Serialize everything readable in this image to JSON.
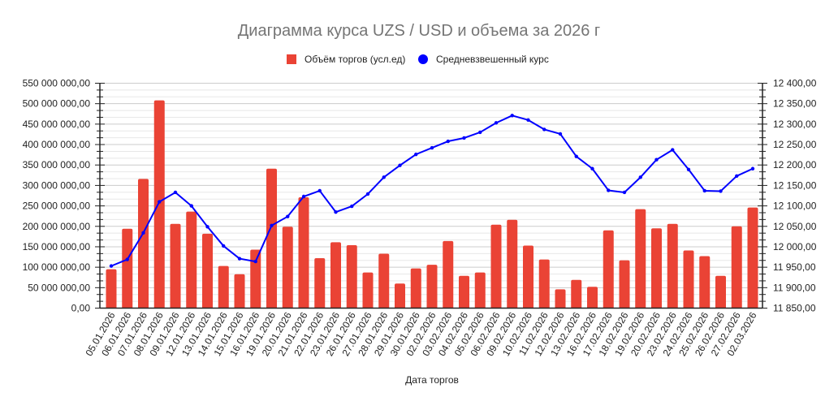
{
  "chart_data": {
    "type": "bar",
    "combo": "bar + line (dual axis)",
    "title": "Диаграмма курса UZS / USD и объема за 2026 г",
    "xlabel": "Дата торгов",
    "ylabel": "",
    "ylabel_right": "",
    "legend_position": "top",
    "grid": true,
    "categories": [
      "05.01.2026",
      "06.01.2026",
      "07.01.2026",
      "08.01.2026",
      "09.01.2026",
      "12.01.2026",
      "13.01.2026",
      "14.01.2026",
      "15.01.2026",
      "16.01.2026",
      "19.01.2026",
      "20.01.2026",
      "21.01.2026",
      "22.01.2026",
      "23.01.2026",
      "26.01.2026",
      "27.01.2026",
      "28.01.2026",
      "29.01.2026",
      "30.01.2026",
      "02.02.2026",
      "03.02.2026",
      "04.02.2026",
      "05.02.2026",
      "06.02.2026",
      "09.02.2026",
      "10.02.2026",
      "11.02.2026",
      "12.02.2026",
      "13.02.2026",
      "16.02.2026",
      "17.02.2026",
      "18.02.2026",
      "19.02.2026",
      "20.02.2026",
      "23.02.2026",
      "24.02.2026",
      "25.02.2026",
      "26.02.2026",
      "27.02.2026",
      "02.03.2026"
    ],
    "series": [
      {
        "name": "Объём торгов (усл.ед)",
        "type": "bar",
        "axis": "left",
        "color": "#ea4335",
        "values": [
          95000000,
          194000000,
          316000000,
          508000000,
          206000000,
          236000000,
          182000000,
          103000000,
          83000000,
          143000000,
          341000000,
          199000000,
          271000000,
          122000000,
          161000000,
          154000000,
          87000000,
          133000000,
          60000000,
          97000000,
          106000000,
          164000000,
          79000000,
          87000000,
          204000000,
          216000000,
          153000000,
          119000000,
          46000000,
          69000000,
          52000000,
          190000000,
          117000000,
          242000000,
          195000000,
          206000000,
          141000000,
          127000000,
          79000000,
          200000000,
          246000000
        ]
      },
      {
        "name": "Средневзвешенный курс",
        "type": "line",
        "axis": "right",
        "color": "#0000ff",
        "values": [
          11953,
          11969,
          12034,
          12110,
          12133,
          12100,
          12049,
          12002,
          11971,
          11964,
          12052,
          12074,
          12123,
          12137,
          12085,
          12099,
          12129,
          12170,
          12199,
          12226,
          12242,
          12258,
          12266,
          12280,
          12303,
          12321,
          12310,
          12287,
          12276,
          12221,
          12191,
          12138,
          12133,
          12170,
          12213,
          12237,
          12189,
          12137,
          12136,
          12173,
          12191
        ]
      }
    ],
    "ylim": [
      0,
      550000000
    ],
    "ylim_right": [
      11850,
      12400
    ],
    "yticks": [
      "0,00",
      "50 000 000,00",
      "100 000 000,00",
      "150 000 000,00",
      "200 000 000,00",
      "250 000 000,00",
      "300 000 000,00",
      "350 000 000,00",
      "400 000 000,00",
      "450 000 000,00",
      "500 000 000,00",
      "550 000 000,00"
    ],
    "yticks_right": [
      "11 850,00",
      "11 900,00",
      "11 950,00",
      "12 000,00",
      "12 050,00",
      "12 100,00",
      "12 150,00",
      "12 200,00",
      "12 250,00",
      "12 300,00",
      "12 350,00",
      "12 400,00"
    ]
  },
  "legend": {
    "items": [
      {
        "label": "Объём торгов (усл.ед)",
        "shape": "square",
        "color": "#ea4335"
      },
      {
        "label": "Средневзвешенный курс",
        "shape": "circle",
        "color": "#0000ff"
      }
    ]
  },
  "colors": {
    "background": "#ffffff",
    "title": "#757575",
    "grid_major": "#cccccc",
    "grid_minor": "#e8e8e8",
    "axis": "#222222"
  }
}
